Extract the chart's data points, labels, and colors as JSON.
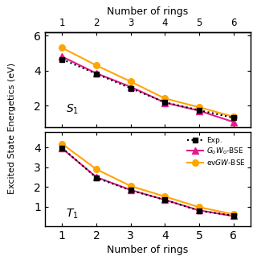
{
  "rings": [
    1,
    2,
    3,
    4,
    5,
    6
  ],
  "S1_exp": [
    4.65,
    3.82,
    3.0,
    2.2,
    1.75,
    1.32
  ],
  "S1_G0W0_BSE": [
    4.8,
    3.85,
    3.08,
    2.18,
    1.72,
    1.08
  ],
  "S1_evGW_BSE": [
    5.3,
    4.3,
    3.38,
    2.42,
    1.92,
    1.38
  ],
  "T1_exp": [
    3.98,
    2.47,
    1.83,
    1.35,
    0.8,
    0.55
  ],
  "T1_G0W0_BSE": [
    3.95,
    2.5,
    1.85,
    1.35,
    0.82,
    0.53
  ],
  "T1_evGW_BSE": [
    4.18,
    2.9,
    2.05,
    1.52,
    0.98,
    0.62
  ],
  "color_exp": "#000000",
  "color_G0W0": "#e8198b",
  "color_evGW": "#ffa500",
  "xlabel_bottom": "Number of rings",
  "xlabel_top": "Number of rings",
  "ylabel": "Excited State Energetics (eV)",
  "label_S1": "$S_1$",
  "label_T1": "$T_1$",
  "legend_exp": "Exp.",
  "legend_G0W0": "$G_0W_0$-BSE",
  "legend_evGW": "ev$GW$-BSE",
  "S1_ylim": [
    0.8,
    6.2
  ],
  "T1_ylim": [
    0.0,
    4.8
  ],
  "S1_yticks": [
    2,
    4,
    6
  ],
  "T1_yticks": [
    1,
    2,
    3,
    4
  ],
  "bg_color": "#ffffff"
}
